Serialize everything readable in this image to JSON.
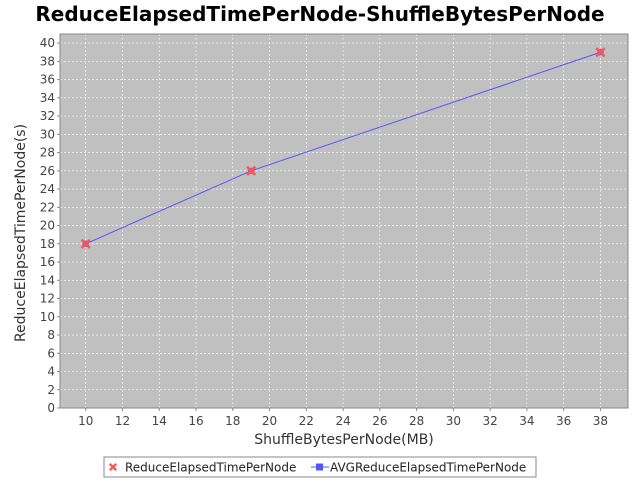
{
  "chart_data": {
    "type": "line",
    "title": "ReduceElapsedTimePerNode-ShuffleBytesPerNode",
    "xlabel": "ShuffleBytesPerNode(MB)",
    "ylabel": "ReduceElapsedTimePerNode(s)",
    "xlim": [
      8.6,
      39.5
    ],
    "ylim": [
      0,
      41
    ],
    "xticks": [
      10,
      12,
      14,
      16,
      18,
      20,
      22,
      24,
      26,
      28,
      30,
      32,
      34,
      36,
      38
    ],
    "yticks": [
      0,
      2,
      4,
      6,
      8,
      10,
      12,
      14,
      16,
      18,
      20,
      22,
      24,
      26,
      28,
      30,
      32,
      34,
      36,
      38,
      40
    ],
    "grid": true,
    "legend_position": "bottom-center",
    "series": [
      {
        "name": "ReduceElapsedTimePerNode",
        "kind": "scatter",
        "marker": "x",
        "color": "#ff5555",
        "x": [
          10,
          19,
          38
        ],
        "y": [
          18,
          26,
          39
        ]
      },
      {
        "name": "AVGReduceElapsedTimePerNode",
        "kind": "line",
        "marker": "square",
        "color": "#5555ff",
        "x": [
          10,
          19,
          38
        ],
        "y": [
          18,
          26,
          39
        ]
      }
    ]
  },
  "colors": {
    "plot_background": "#c0c0c0",
    "gridline": "#ffffff",
    "axis": "#888888"
  }
}
